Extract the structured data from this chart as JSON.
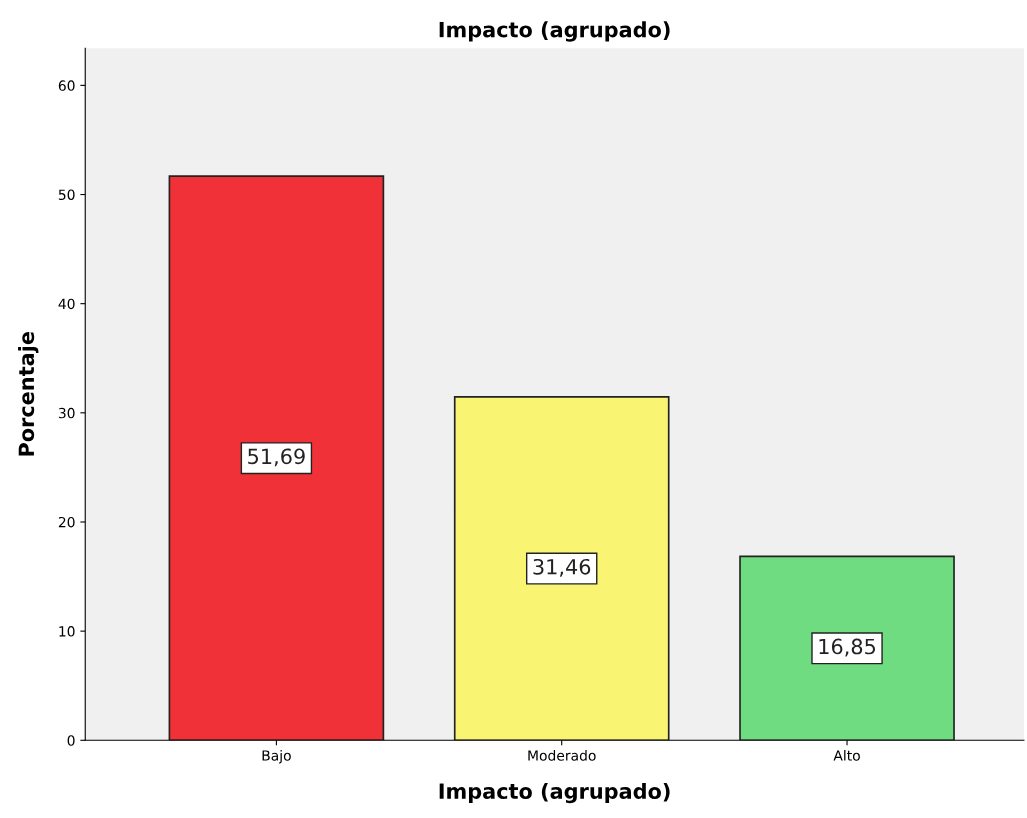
{
  "chart_data": {
    "type": "bar",
    "title": "Impacto (agrupado)",
    "xlabel": "Impacto (agrupado)",
    "ylabel": "Porcentaje",
    "categories": [
      "Bajo",
      "Moderado",
      "Alto"
    ],
    "values": [
      51.69,
      31.46,
      16.85
    ],
    "value_labels": [
      "51,69",
      "31,46",
      "16,85"
    ],
    "colors": [
      "#f03238",
      "#f9f472",
      "#6fdc82"
    ],
    "ylim": [
      0,
      63.4
    ],
    "yticks": [
      0,
      10,
      20,
      30,
      40,
      50,
      60
    ],
    "grid": false,
    "legend": false
  }
}
